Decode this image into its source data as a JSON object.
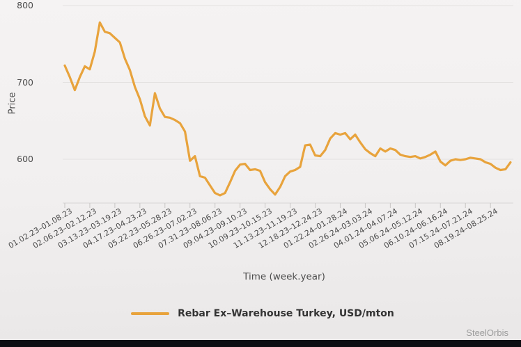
{
  "watermark": "SteelOrbis",
  "colors": {
    "line": "#E8A33C",
    "grid": "#e3e1e0",
    "axis_line": "#d8d6d5",
    "tick_mark": "#c7c5c4",
    "axis_text": "#4a4a4a",
    "legend_text": "#333333",
    "watermark_text": "#9b9b9b",
    "bottom_bar": "#0d0d12"
  },
  "chart_data": {
    "type": "line",
    "title": "",
    "xlabel": "Time (week.year)",
    "ylabel": "Price",
    "ylim": [
      543,
      800
    ],
    "yticks": [
      600,
      700,
      800
    ],
    "grid": "horizontal",
    "legend_position": "bottom-center",
    "x_tick_every": 5,
    "x_tick_labels": [
      "01.02.23–01.08.23",
      "02.06.23–02.12.23",
      "03.13.23–03.19.23",
      "04.17.23–04.23.23",
      "05.22.23–05.28.23",
      "06.26.23–07.02.23",
      "07.31.23–08.06.23",
      "09.04.23–09.10.23",
      "10.09.23–10.15.23",
      "11.13.23–11.19.23",
      "12.18.23–12.24.23",
      "01.22.24–01.28.24",
      "02.26.24–03.03.24",
      "04.01.24–04.07.24",
      "05.06.24–05.12.24",
      "06.10.24–06.16.24",
      "07.15.24–07.21.24",
      "08.19.24–08.25.24"
    ],
    "series": [
      {
        "name": "Rebar Ex–Warehouse Turkey, USD/mton",
        "values": [
          722,
          707,
          690,
          707,
          721,
          717,
          740,
          778,
          766,
          764,
          758,
          752,
          731,
          716,
          694,
          678,
          656,
          644,
          686,
          666,
          655,
          654,
          651,
          647,
          636,
          598,
          604,
          578,
          576,
          566,
          556,
          553,
          556,
          570,
          585,
          593,
          594,
          586,
          587,
          585,
          570,
          561,
          554,
          564,
          578,
          584,
          586,
          590,
          618,
          619,
          605,
          604,
          612,
          627,
          634,
          632,
          634,
          626,
          632,
          622,
          613,
          608,
          604,
          614,
          610,
          614,
          612,
          606,
          604,
          603,
          604,
          601,
          603,
          606,
          610,
          597,
          592,
          598,
          600,
          599,
          600,
          602,
          601,
          600,
          596,
          594,
          589,
          586,
          587,
          596
        ]
      }
    ]
  }
}
